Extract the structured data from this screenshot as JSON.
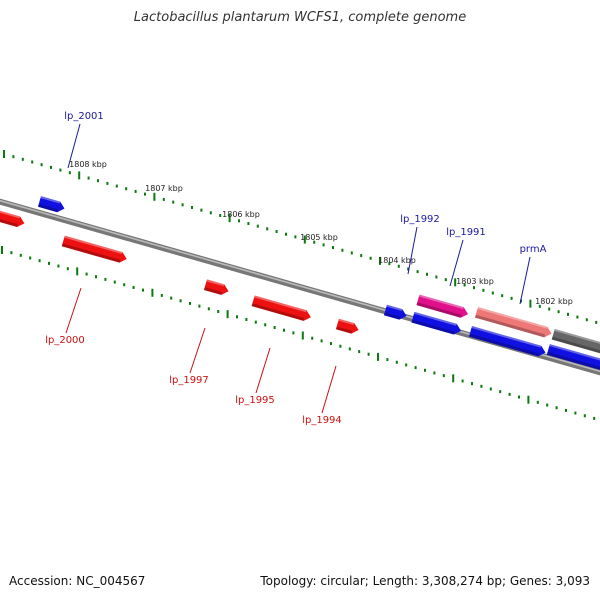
{
  "title": "Lactobacillus plantarum WCFS1, complete genome",
  "footer": {
    "accession": "Accession: NC_004567",
    "topology": "Topology: circular; Length: 3,308,274 bp; Genes: 3,093"
  },
  "colors": {
    "forward_gene": "#1010e0",
    "reverse_gene": "#ee1111",
    "highlight_gene": "#e0108a",
    "pseudo_gene": "#ee7777",
    "other_feature": "#666666",
    "backbone": "#777777",
    "tick": "#0a7a0a",
    "forward_label": "#1a1aa0",
    "reverse_label": "#cc1010",
    "scale_label": "#222222"
  },
  "scale_labels": [
    "1808 kbp",
    "1807 kbp",
    "1806 kbp",
    "1805 kbp",
    "1804 kbp",
    "1803 kbp",
    "1802 kbp"
  ],
  "forward_gene_labels": [
    "lp_2001",
    "lp_1992",
    "lp_1991",
    "prmA"
  ],
  "reverse_gene_labels": [
    "lp_2000",
    "lp_1997",
    "lp_1995",
    "lp_1994"
  ]
}
